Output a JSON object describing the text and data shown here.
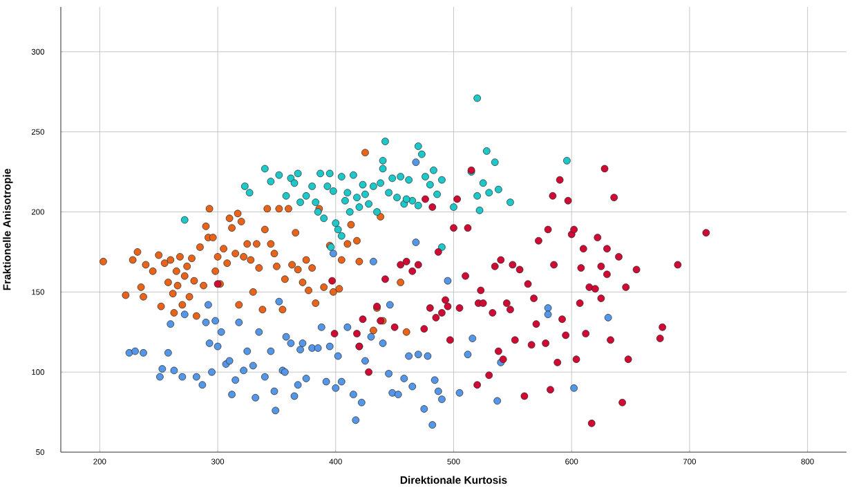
{
  "chart_data": {
    "type": "scatter",
    "xlabel": "Direktionale Kurtosis",
    "ylabel": "Fraktionelle Anisotropie",
    "xlim": [
      167,
      833
    ],
    "ylim": [
      50,
      328
    ],
    "xticks": [
      200,
      300,
      400,
      500,
      600,
      700,
      800
    ],
    "yticks": [
      50,
      100,
      150,
      200,
      250,
      300
    ],
    "grid": true,
    "marker": "circle",
    "series": [
      {
        "color": "#e8641b",
        "x": [
          203,
          222,
          228,
          232,
          235,
          237,
          239,
          245,
          250,
          252,
          255,
          258,
          260,
          262,
          263,
          265,
          266,
          268,
          270,
          272,
          274,
          276,
          278,
          280,
          282,
          285,
          288,
          290,
          292,
          293,
          296,
          298,
          300,
          302,
          305,
          308,
          310,
          312,
          315,
          317,
          318,
          320,
          322,
          325,
          328,
          330,
          333,
          335,
          338,
          340,
          342,
          345,
          348,
          350,
          352,
          355,
          357,
          360,
          363,
          366,
          368,
          372,
          375,
          377,
          380,
          383,
          386,
          390,
          395,
          398,
          403,
          405,
          410,
          413,
          418,
          420,
          425,
          432,
          435,
          438,
          440,
          455,
          460
        ],
        "values": [
          169,
          148,
          170,
          175,
          153,
          147,
          167,
          163,
          173,
          141,
          168,
          156,
          170,
          149,
          137,
          163,
          154,
          172,
          142,
          160,
          166,
          147,
          171,
          157,
          135,
          178,
          154,
          191,
          184,
          202,
          184,
          163,
          172,
          155,
          177,
          168,
          196,
          190,
          174,
          199,
          142,
          194,
          172,
          180,
          170,
          150,
          180,
          165,
          139,
          189,
          202,
          180,
          174,
          166,
          202,
          139,
          158,
          202,
          167,
          187,
          164,
          156,
          170,
          151,
          165,
          143,
          202,
          153,
          179,
          150,
          152,
          170,
          180,
          192,
          182,
          169,
          237,
          126,
          140,
          197,
          132,
          156,
          125
        ]
      },
      {
        "color": "#1ec8c8",
        "x": [
          272,
          323,
          327,
          340,
          345,
          352,
          358,
          362,
          365,
          368,
          370,
          375,
          380,
          383,
          385,
          387,
          390,
          393,
          395,
          398,
          400,
          402,
          405,
          408,
          410,
          412,
          415,
          418,
          420,
          423,
          425,
          428,
          432,
          435,
          438,
          440,
          442,
          445,
          448,
          452,
          455,
          458,
          462,
          465,
          470,
          473,
          476,
          480,
          483,
          486,
          490,
          490,
          500,
          515,
          520,
          522,
          525,
          528,
          535,
          538,
          548,
          596,
          520,
          530,
          470,
          460,
          440,
          405,
          396
        ],
        "values": [
          195,
          216,
          212,
          227,
          219,
          223,
          210,
          221,
          218,
          224,
          206,
          210,
          216,
          206,
          200,
          224,
          196,
          216,
          224,
          213,
          193,
          189,
          222,
          207,
          212,
          200,
          223,
          209,
          203,
          217,
          211,
          205,
          216,
          200,
          218,
          232,
          244,
          212,
          221,
          209,
          222,
          205,
          220,
          207,
          241,
          236,
          222,
          217,
          226,
          211,
          220,
          178,
          203,
          225,
          271,
          201,
          218,
          238,
          231,
          214,
          206,
          232,
          210,
          212,
          204,
          208,
          227,
          185,
          178
        ]
      },
      {
        "color": "#5596e6",
        "x": [
          225,
          230,
          237,
          251,
          253,
          258,
          260,
          263,
          270,
          272,
          282,
          287,
          290,
          292,
          293,
          295,
          298,
          300,
          303,
          307,
          310,
          312,
          315,
          318,
          322,
          325,
          330,
          332,
          335,
          340,
          345,
          348,
          349,
          352,
          355,
          357,
          358,
          362,
          365,
          368,
          370,
          372,
          375,
          380,
          385,
          388,
          392,
          395,
          398,
          400,
          402,
          405,
          410,
          415,
          417,
          420,
          422,
          425,
          430,
          432,
          440,
          445,
          448,
          453,
          458,
          462,
          465,
          470,
          475,
          478,
          482,
          484,
          487,
          490,
          495,
          505,
          512,
          516,
          537,
          540,
          580,
          580,
          602,
          631,
          468,
          468,
          446
        ],
        "values": [
          112,
          113,
          112,
          97,
          102,
          112,
          130,
          101,
          97,
          136,
          97,
          92,
          131,
          142,
          118,
          100,
          132,
          116,
          125,
          105,
          107,
          86,
          95,
          131,
          101,
          113,
          104,
          84,
          125,
          97,
          113,
          88,
          76,
          144,
          101,
          100,
          122,
          118,
          85,
          92,
          114,
          118,
          96,
          115,
          115,
          128,
          94,
          116,
          174,
          90,
          110,
          94,
          128,
          86,
          70,
          116,
          81,
          107,
          122,
          169,
          118,
          99,
          87,
          86,
          96,
          110,
          91,
          111,
          77,
          110,
          67,
          95,
          88,
          83,
          157,
          87,
          111,
          121,
          82,
          106,
          140,
          136,
          90,
          134,
          231,
          181,
          142
        ]
      },
      {
        "color": "#d10a34",
        "x": [
          300,
          397,
          399,
          418,
          420,
          423,
          428,
          435,
          438,
          442,
          450,
          455,
          460,
          465,
          470,
          475,
          476,
          480,
          482,
          485,
          487,
          490,
          493,
          495,
          497,
          500,
          503,
          505,
          510,
          512,
          515,
          520,
          521,
          523,
          525,
          530,
          533,
          535,
          538,
          540,
          542,
          545,
          548,
          550,
          552,
          556,
          560,
          563,
          566,
          568,
          570,
          572,
          578,
          580,
          582,
          584,
          585,
          588,
          590,
          592,
          595,
          597,
          600,
          602,
          604,
          607,
          610,
          612,
          615,
          617,
          620,
          622,
          625,
          628,
          630,
          633,
          636,
          640,
          643,
          646,
          648,
          655,
          675,
          677,
          690,
          714,
          630,
          625,
          608
        ],
        "values": [
          155,
          157,
          124,
          124,
          116,
          133,
          100,
          141,
          132,
          158,
          128,
          167,
          169,
          163,
          167,
          127,
          208,
          140,
          203,
          134,
          175,
          137,
          145,
          141,
          120,
          190,
          208,
          140,
          160,
          190,
          226,
          92,
          143,
          151,
          143,
          98,
          137,
          166,
          113,
          170,
          108,
          143,
          139,
          167,
          120,
          164,
          85,
          155,
          117,
          146,
          130,
          182,
          118,
          189,
          89,
          210,
          167,
          106,
          220,
          133,
          123,
          207,
          186,
          189,
          108,
          143,
          177,
          124,
          153,
          68,
          152,
          184,
          146,
          227,
          177,
          120,
          209,
          172,
          81,
          153,
          108,
          164,
          121,
          128,
          167,
          187,
          161,
          166,
          165
        ]
      }
    ]
  }
}
